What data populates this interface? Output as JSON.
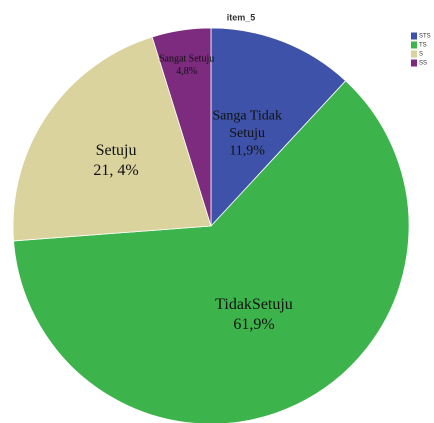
{
  "chart_data": {
    "type": "pie",
    "title": "item_5",
    "categories": [
      "STS",
      "TS",
      "S",
      "SS"
    ],
    "slice_labels": [
      [
        "Sanga Tidak",
        "Setuju"
      ],
      [
        "TidakSetuju"
      ],
      [
        "Setuju"
      ],
      [
        "Sangat Setuju"
      ]
    ],
    "values": [
      11.9,
      61.9,
      21.4,
      4.8
    ],
    "value_labels": [
      "11,9%",
      "61,9%",
      "21, 4%",
      "4,8%"
    ],
    "colors": [
      "#3d52a8",
      "#3cb44b",
      "#dbd39d",
      "#7c2b7f"
    ],
    "start_angle": 0,
    "direction": "clockwise",
    "legend": "upper right"
  }
}
